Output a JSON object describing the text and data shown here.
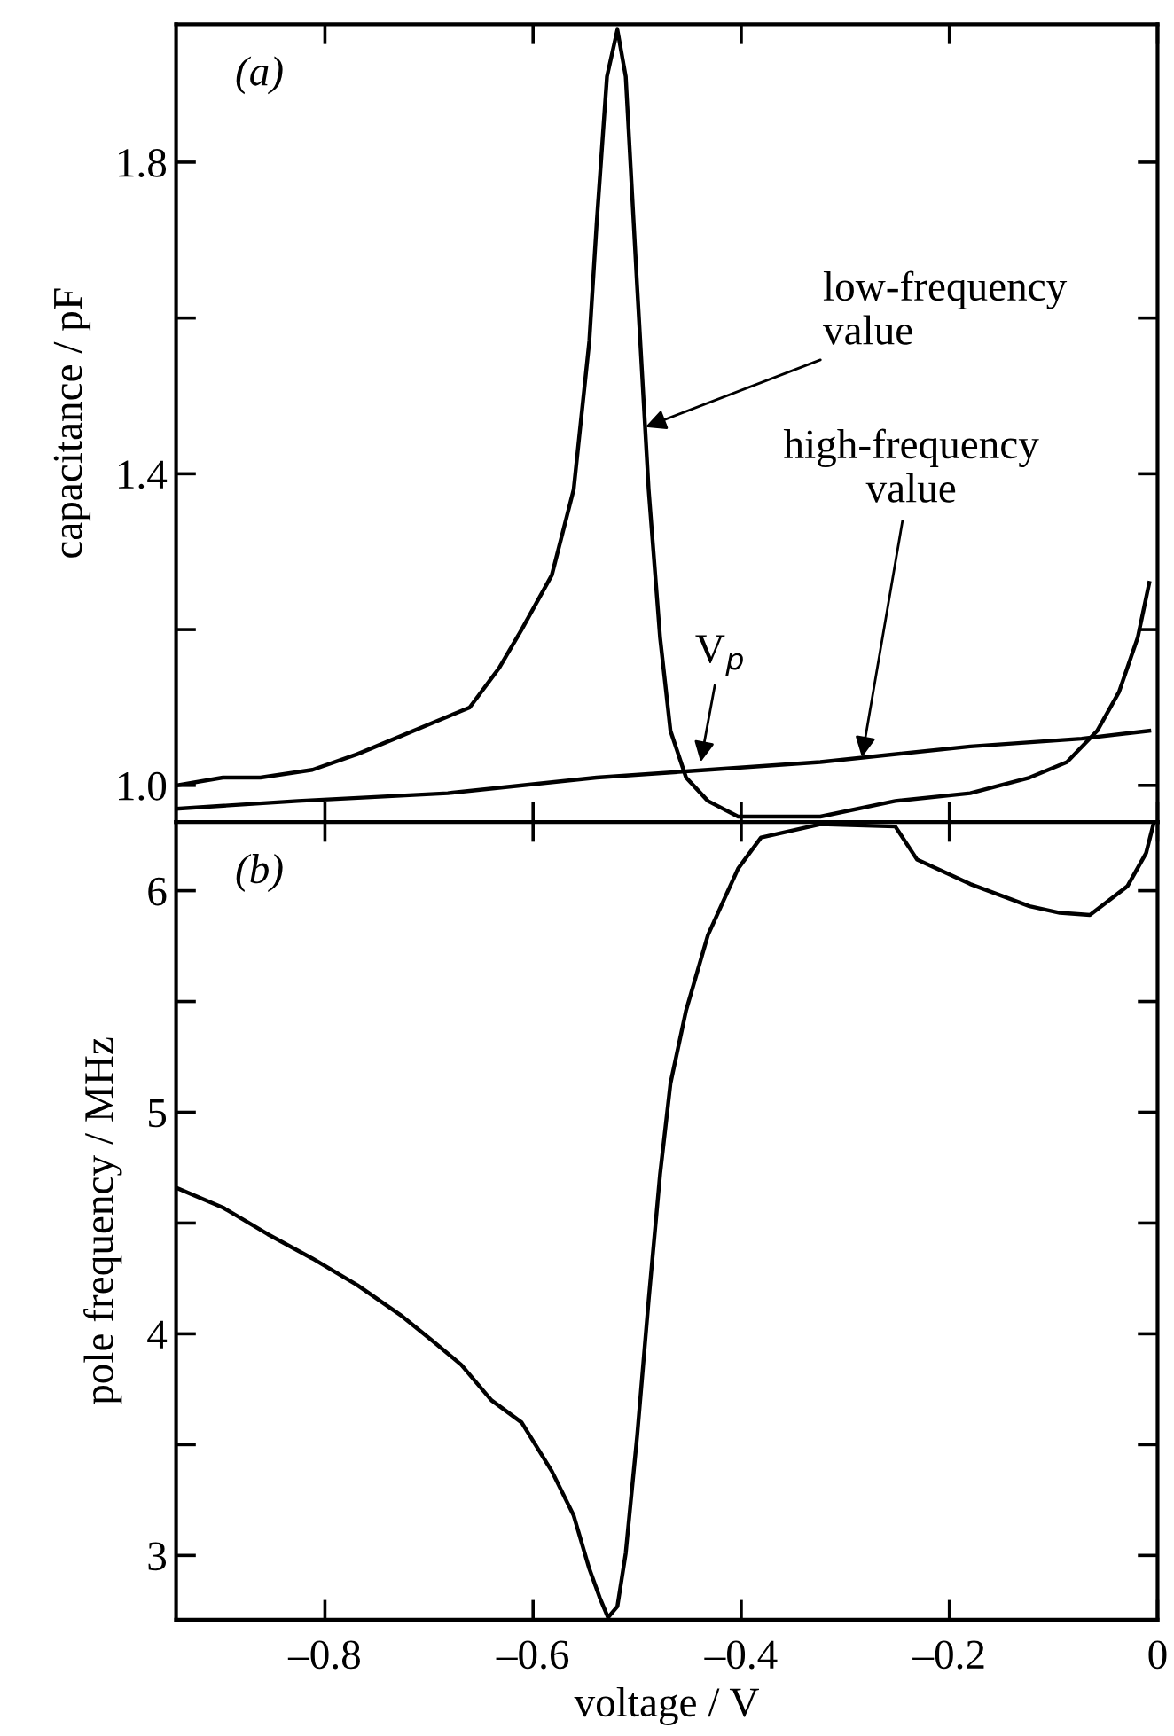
{
  "chart_data": [
    {
      "type": "line",
      "ylabel": "capacitance / pF",
      "tick_labels": "y",
      "grid": false,
      "legend": false,
      "xlim": [
        -0.943,
        0
      ],
      "xticks": [
        -0.8,
        -0.6,
        -0.4,
        -0.2,
        0
      ],
      "ylim": [
        0.953,
        1.977
      ],
      "yticks": [
        {
          "value": 1.0,
          "label": "1.0"
        },
        {
          "value": 1.2,
          "label": null
        },
        1.4,
        {
          "value": 1.6,
          "label": null
        },
        1.8
      ],
      "annotations": [
        "(a)",
        {
          "text": "low-frequency\nvalue",
          "x": -0.492,
          "y": 1.46
        },
        {
          "text": "high-frequency\nvalue",
          "x": -0.284,
          "y": 1.036
        },
        {
          "text": "V$_{p}$",
          "x": -0.439,
          "y": 1.03
        }
      ],
      "series": [
        {
          "color": "#000000",
          "x": [
            -0.943,
            -0.898,
            -0.862,
            -0.812,
            -0.769,
            -0.733,
            -0.697,
            -0.661,
            -0.633,
            -0.611,
            -0.582,
            -0.561,
            -0.546,
            -0.539,
            -0.529,
            -0.519,
            -0.511,
            -0.5,
            -0.489,
            -0.478,
            -0.468,
            -0.453,
            -0.432,
            -0.403,
            -0.381,
            -0.324,
            -0.252,
            -0.18,
            -0.123,
            -0.087,
            -0.058,
            -0.037,
            -0.019,
            -0.008
          ],
          "values": [
            1.0,
            1.01,
            1.01,
            1.02,
            1.04,
            1.06,
            1.08,
            1.1,
            1.15,
            1.2,
            1.27,
            1.38,
            1.57,
            1.72,
            1.91,
            1.97,
            1.91,
            1.64,
            1.38,
            1.19,
            1.07,
            1.01,
            0.98,
            0.96,
            0.96,
            0.96,
            0.98,
            0.99,
            1.01,
            1.03,
            1.07,
            1.12,
            1.19,
            1.26
          ]
        },
        {
          "color": "#000000",
          "x": [
            -0.943,
            -0.826,
            -0.682,
            -0.539,
            -0.432,
            -0.324,
            -0.18,
            -0.073,
            -0.008
          ],
          "values": [
            0.97,
            0.98,
            0.99,
            1.01,
            1.02,
            1.03,
            1.05,
            1.06,
            1.07
          ]
        }
      ]
    },
    {
      "type": "line",
      "xlabel": "voltage / V",
      "ylabel": "pole frequency / MHz",
      "grid": false,
      "legend": false,
      "xlim": [
        -0.943,
        0
      ],
      "xticks": [
        {
          "value": -0.8,
          "label": "–0.8"
        },
        {
          "value": -0.6,
          "label": "–0.6"
        },
        {
          "value": -0.4,
          "label": "–0.4"
        },
        {
          "value": -0.2,
          "label": "–0.2"
        },
        0
      ],
      "ylim": [
        2.71,
        6.31
      ],
      "yticks": [
        3,
        {
          "value": 3.5,
          "label": null
        },
        4,
        {
          "value": 4.5,
          "label": null
        },
        5,
        {
          "value": 5.5,
          "label": null
        },
        6
      ],
      "annotations": [
        "(b)"
      ],
      "series": [
        {
          "color": "#000000",
          "x": [
            -0.943,
            -0.898,
            -0.855,
            -0.812,
            -0.769,
            -0.726,
            -0.697,
            -0.669,
            -0.64,
            -0.611,
            -0.582,
            -0.561,
            -0.546,
            -0.536,
            -0.528,
            -0.519,
            -0.511,
            -0.5,
            -0.489,
            -0.478,
            -0.468,
            -0.453,
            -0.432,
            -0.403,
            -0.381,
            -0.324,
            -0.252,
            -0.231,
            -0.18,
            -0.123,
            -0.094,
            -0.065,
            -0.029,
            -0.011,
            -0.004
          ],
          "values": [
            4.66,
            4.57,
            4.45,
            4.34,
            4.22,
            4.08,
            3.97,
            3.86,
            3.7,
            3.6,
            3.38,
            3.18,
            2.94,
            2.81,
            2.72,
            2.77,
            3.01,
            3.54,
            4.15,
            4.72,
            5.13,
            5.46,
            5.8,
            6.1,
            6.24,
            6.3,
            6.29,
            6.14,
            6.03,
            5.93,
            5.9,
            5.89,
            6.02,
            6.17,
            6.3
          ]
        }
      ]
    }
  ]
}
